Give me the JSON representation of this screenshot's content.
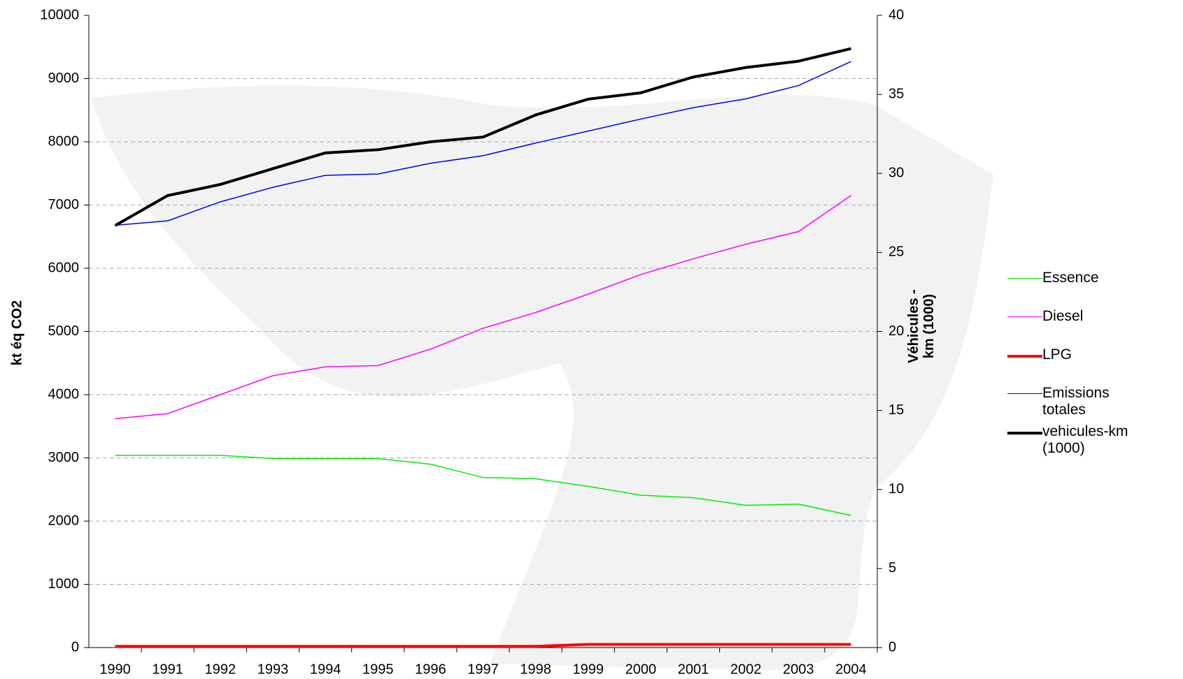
{
  "chart_data": {
    "type": "line",
    "y_label": "kt éq CO2",
    "y2_label": "Véhicules - km (1000)",
    "categories": [
      "1990",
      "1991",
      "1992",
      "1993",
      "1994",
      "1995",
      "1996",
      "1997",
      "1998",
      "1999",
      "2000",
      "2001",
      "2002",
      "2003",
      "2004"
    ],
    "series": [
      {
        "name": "Essence",
        "color": "#00ee00",
        "line_width": 1.5,
        "values": [
          3040,
          3040,
          3040,
          2990,
          2990,
          2990,
          2900,
          2690,
          2670,
          2550,
          2410,
          2370,
          2250,
          2270,
          2090
        ]
      },
      {
        "name": "Diesel",
        "color": "#ff00ff",
        "line_width": 1.5,
        "values": [
          3620,
          3700,
          4000,
          4300,
          4440,
          4460,
          4720,
          5050,
          5300,
          5590,
          5900,
          6150,
          6380,
          6580,
          7150
        ]
      },
      {
        "name": "LPG",
        "color": "#ff0000",
        "line_width": 4,
        "values": [
          20,
          20,
          20,
          20,
          20,
          20,
          20,
          20,
          20,
          50,
          50,
          50,
          50,
          50,
          50
        ]
      },
      {
        "name": "Emissions totales",
        "color": "#0000ee",
        "line_width": 1.5,
        "values": [
          6680,
          6750,
          7050,
          7280,
          7470,
          7490,
          7660,
          7780,
          7980,
          8170,
          8360,
          8540,
          8680,
          8890,
          9270
        ]
      },
      {
        "name": "vehicules-km (1000)",
        "color": "#000000",
        "line_width": 4,
        "axis": "y2",
        "values": [
          26.7,
          28.6,
          29.3,
          30.3,
          31.3,
          31.5,
          32.0,
          32.3,
          33.7,
          34.7,
          35.1,
          36.1,
          36.7,
          37.1,
          37.9
        ]
      }
    ],
    "ylim": [
      0,
      10000
    ],
    "yticks": [
      0,
      1000,
      2000,
      3000,
      4000,
      5000,
      6000,
      7000,
      8000,
      9000,
      10000
    ],
    "y2lim": [
      0,
      40
    ],
    "y2ticks": [
      0,
      5,
      10,
      15,
      20,
      25,
      30,
      35,
      40
    ],
    "grid": true
  }
}
